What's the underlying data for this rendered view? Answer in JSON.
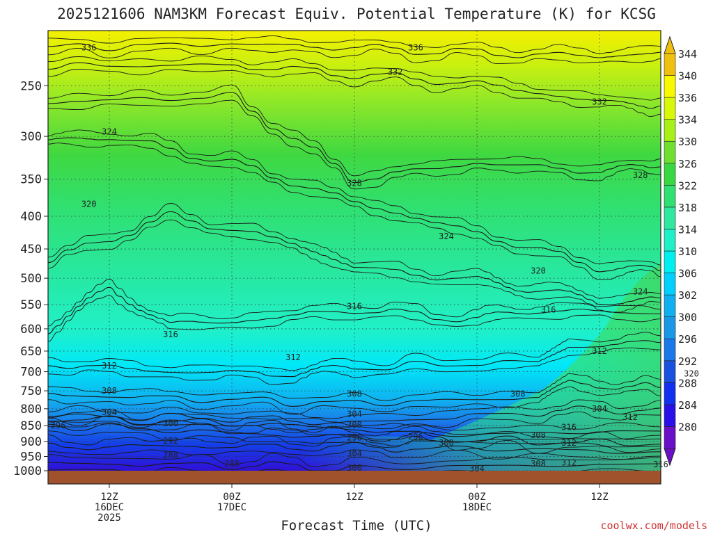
{
  "title": "2025121606 NAM3KM Forecast Equiv. Potential Temperature (K) for KCSG",
  "footer": {
    "credit": "coolwx.com/models"
  },
  "chart_data": {
    "type": "heatmap",
    "title": "2025121606 NAM3KM Forecast Equiv. Potential Temperature (K) for KCSG",
    "xlabel": "Forecast Time (UTC)",
    "ylabel": "",
    "y_scale": "log-pressure (hPa), inverted",
    "ylim": [
      1000,
      205
    ],
    "xlim": [
      "2025-12-16 06Z",
      "2025-12-18 18Z"
    ],
    "grid": "dotted, at pressure ticks and 12-hour times",
    "y_ticks": [
      250,
      300,
      350,
      400,
      450,
      500,
      550,
      600,
      650,
      700,
      750,
      800,
      850,
      900,
      950,
      1000
    ],
    "x_ticks": [
      {
        "time": "2025-12-16 12Z",
        "label": [
          "12Z",
          "16DEC",
          "2025"
        ]
      },
      {
        "time": "2025-12-17 00Z",
        "label": [
          "00Z",
          "17DEC"
        ]
      },
      {
        "time": "2025-12-17 12Z",
        "label": [
          "12Z"
        ]
      },
      {
        "time": "2025-12-18 00Z",
        "label": [
          "00Z",
          "18DEC"
        ]
      },
      {
        "time": "2025-12-18 12Z",
        "label": [
          "12Z"
        ]
      }
    ],
    "colorbar": {
      "levels": [
        280,
        284,
        288,
        292,
        296,
        300,
        302,
        306,
        310,
        314,
        318,
        322,
        326,
        330,
        334,
        336,
        340,
        344
      ],
      "colors": [
        "#6a10c8",
        "#2a10e8",
        "#1230f0",
        "#1850e0",
        "#1a78e8",
        "#1a98e8",
        "#10b0f0",
        "#00d0ff",
        "#00f0f0",
        "#20f0c8",
        "#30e8a0",
        "#30e070",
        "#38d840",
        "#70e030",
        "#a8f018",
        "#d8f808",
        "#f8f800",
        "#f0c010"
      ],
      "extend": "both"
    },
    "series": [
      {
        "level": 288,
        "x": [
          "2025-12-16 06Z",
          "2025-12-17 00Z",
          "2025-12-17 12Z"
        ],
        "y": [
          975,
          980,
          990
        ]
      },
      {
        "level": 292,
        "x": [
          "2025-12-16 06Z",
          "2025-12-16 18Z",
          "2025-12-17 06Z",
          "2025-12-17 18Z"
        ],
        "y": [
          918,
          915,
          918,
          920
        ]
      },
      {
        "level": 296,
        "x": [
          "2025-12-16 06Z",
          "2025-12-17 00Z",
          "2025-12-17 12Z",
          "2025-12-17 18Z"
        ],
        "y": [
          848,
          872,
          890,
          880
        ]
      },
      {
        "level": 300,
        "x": [
          "2025-12-16 06Z",
          "2025-12-17 00Z",
          "2025-12-17 12Z",
          "2025-12-18 00Z"
        ],
        "y": [
          830,
          842,
          860,
          895
        ]
      },
      {
        "level": 304,
        "x": [
          "2025-12-16 06Z",
          "2025-12-17 00Z",
          "2025-12-17 12Z",
          "2025-12-18 06Z"
        ],
        "y": [
          820,
          828,
          842,
          810
        ]
      },
      {
        "level": 308,
        "x": [
          "2025-12-16 06Z",
          "2025-12-16 18Z",
          "2025-12-17 12Z",
          "2025-12-18 06Z",
          "2025-12-18 09Z"
        ],
        "y": [
          760,
          770,
          785,
          768,
          730
        ]
      },
      {
        "level": 312,
        "x": [
          "2025-12-16 06Z",
          "2025-12-16 18Z",
          "2025-12-17 06Z",
          "2025-12-17 12Z",
          "2025-12-18 06Z",
          "2025-12-18 09Z"
        ],
        "y": [
          680,
          700,
          705,
          690,
          675,
          640
        ]
      },
      {
        "level": 316,
        "x": [
          "2025-12-16 06Z",
          "2025-12-16 12Z",
          "2025-12-16 18Z",
          "2025-12-17 00Z",
          "2025-12-17 12Z",
          "2025-12-18 00Z",
          "2025-12-18 06Z"
        ],
        "y": [
          600,
          520,
          590,
          585,
          560,
          580,
          560
        ]
      },
      {
        "level": 320,
        "x": [
          "2025-12-16 06Z",
          "2025-12-16 18Z",
          "2025-12-17 06Z",
          "2025-12-17 12Z",
          "2025-12-18 00Z",
          "2025-12-18 06Z",
          "2025-12-18 12Z"
        ],
        "y": [
          470,
          400,
          440,
          480,
          505,
          520,
          545
        ]
      },
      {
        "level": 324,
        "x": [
          "2025-12-16 06Z",
          "2025-12-16 12Z",
          "2025-12-17 00Z",
          "2025-12-17 12Z",
          "2025-12-18 00Z",
          "2025-12-18 12Z"
        ],
        "y": [
          305,
          300,
          330,
          380,
          425,
          480
        ]
      },
      {
        "level": 328,
        "x": [
          "2025-12-16 06Z",
          "2025-12-17 00Z",
          "2025-12-17 12Z",
          "2025-12-18 00Z",
          "2025-12-18 12Z"
        ],
        "y": [
          265,
          260,
          350,
          330,
          340
        ]
      },
      {
        "level": 332,
        "x": [
          "2025-12-16 06Z",
          "2025-12-17 00Z",
          "2025-12-17 12Z",
          "2025-12-18 00Z",
          "2025-12-18 12Z"
        ],
        "y": [
          233,
          232,
          240,
          248,
          265
        ]
      },
      {
        "level": 336,
        "x": [
          "2025-12-16 06Z",
          "2025-12-17 00Z",
          "2025-12-17 12Z",
          "2025-12-18 00Z",
          "2025-12-18 12Z"
        ],
        "y": [
          218,
          215,
          218,
          222,
          225
        ]
      }
    ],
    "annotations": [
      {
        "text": "336",
        "time": "2025-12-16 10Z",
        "p": 218
      },
      {
        "text": "336",
        "time": "2025-12-17 18Z",
        "p": 218
      },
      {
        "text": "332",
        "time": "2025-12-17 16Z",
        "p": 238
      },
      {
        "text": "332",
        "time": "2025-12-18 12Z",
        "p": 265
      },
      {
        "text": "324",
        "time": "2025-12-16 12Z",
        "p": 295
      },
      {
        "text": "328",
        "time": "2025-12-17 12Z",
        "p": 355
      },
      {
        "text": "328",
        "time": "2025-12-18 16Z",
        "p": 345
      },
      {
        "text": "320",
        "time": "2025-12-16 10Z",
        "p": 383
      },
      {
        "text": "324",
        "time": "2025-12-17 21Z",
        "p": 430
      },
      {
        "text": "320",
        "time": "2025-12-18 06Z",
        "p": 487
      },
      {
        "text": "324",
        "time": "2025-12-18 16Z",
        "p": 525
      },
      {
        "text": "316",
        "time": "2025-12-17 12Z",
        "p": 553
      },
      {
        "text": "316",
        "time": "2025-12-18 07Z",
        "p": 560
      },
      {
        "text": "316",
        "time": "2025-12-16 18Z",
        "p": 612
      },
      {
        "text": "312",
        "time": "2025-12-17 06Z",
        "p": 665
      },
      {
        "text": "312",
        "time": "2025-12-18 12Z",
        "p": 650
      },
      {
        "text": "312",
        "time": "2025-12-16 12Z",
        "p": 685
      },
      {
        "text": "320",
        "time": "2025-12-18 21Z",
        "p": 705
      },
      {
        "text": "308",
        "time": "2025-12-16 12Z",
        "p": 750
      },
      {
        "text": "308",
        "time": "2025-12-17 12Z",
        "p": 758
      },
      {
        "text": "308",
        "time": "2025-12-18 04Z",
        "p": 758
      },
      {
        "text": "304",
        "time": "2025-12-16 12Z",
        "p": 810
      },
      {
        "text": "304",
        "time": "2025-12-17 12Z",
        "p": 815
      },
      {
        "text": "304",
        "time": "2025-12-18 12Z",
        "p": 800
      },
      {
        "text": "296",
        "time": "2025-12-16 07Z",
        "p": 850
      },
      {
        "text": "300",
        "time": "2025-12-16 18Z",
        "p": 843
      },
      {
        "text": "300",
        "time": "2025-12-17 12Z",
        "p": 848
      },
      {
        "text": "312",
        "time": "2025-12-18 15Z",
        "p": 825
      },
      {
        "text": "316",
        "time": "2025-12-18 09Z",
        "p": 855
      },
      {
        "text": "292",
        "time": "2025-12-16 18Z",
        "p": 898
      },
      {
        "text": "296",
        "time": "2025-12-17 12Z",
        "p": 888
      },
      {
        "text": "296",
        "time": "2025-12-17 18Z",
        "p": 885
      },
      {
        "text": "300",
        "time": "2025-12-17 21Z",
        "p": 905
      },
      {
        "text": "308",
        "time": "2025-12-18 06Z",
        "p": 880
      },
      {
        "text": "312",
        "time": "2025-12-18 09Z",
        "p": 905
      },
      {
        "text": "288",
        "time": "2025-12-16 18Z",
        "p": 945
      },
      {
        "text": "304",
        "time": "2025-12-17 12Z",
        "p": 940
      },
      {
        "text": "308",
        "time": "2025-12-18 06Z",
        "p": 975
      },
      {
        "text": "312",
        "time": "2025-12-18 09Z",
        "p": 972
      },
      {
        "text": "316",
        "time": "2025-12-18 18Z",
        "p": 978
      },
      {
        "text": "288",
        "time": "2025-12-17 00Z",
        "p": 975
      },
      {
        "text": "300",
        "time": "2025-12-17 12Z",
        "p": 990
      },
      {
        "text": "304",
        "time": "2025-12-18 00Z",
        "p": 993
      }
    ],
    "ground": {
      "color": "#a0522d",
      "below_p": 1000
    }
  }
}
